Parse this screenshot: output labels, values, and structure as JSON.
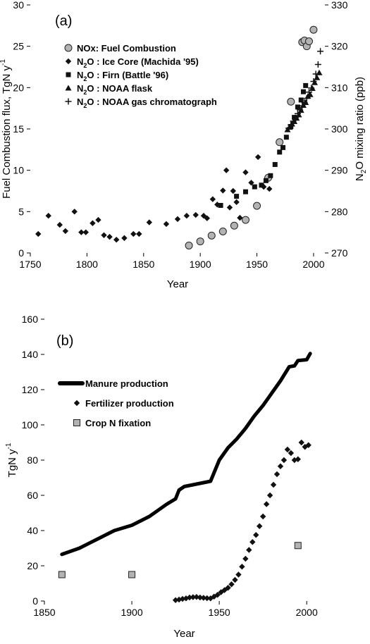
{
  "chart_data": [
    {
      "type": "scatter",
      "panel_label": "(a)",
      "xlabel": "Year",
      "ylabel": "Fuel Combustion flux, TgN y",
      "ylabel_sup": "-1",
      "y2label": "N2O mixing ratio (ppb)",
      "xlim": [
        1750,
        2010
      ],
      "ylim": [
        0,
        30
      ],
      "y2lim": [
        270,
        330
      ],
      "xticks": [
        1750,
        1800,
        1850,
        1900,
        1950,
        2000
      ],
      "yticks": [
        0,
        5,
        10,
        15,
        20,
        25,
        30
      ],
      "y2ticks": [
        270,
        280,
        290,
        300,
        310,
        320,
        330
      ],
      "grid": false,
      "legend_position": "upper-left",
      "series": [
        {
          "name": "NOx: Fuel Combustion",
          "legend_text": "NOx: Fuel Combustion",
          "marker": "circle",
          "axis": "left",
          "x": [
            1890,
            1900,
            1910,
            1920,
            1930,
            1940,
            1950,
            1960,
            1970,
            1980,
            1990,
            1992,
            1994,
            1996,
            2000
          ],
          "y": [
            0.9,
            1.4,
            2.1,
            2.6,
            3.3,
            4.0,
            5.7,
            9.1,
            13.4,
            18.3,
            25.5,
            25.7,
            25.0,
            25.6,
            27.0
          ]
        },
        {
          "name": "N2O: Ice Core (Machida '95)",
          "legend_prefix": "N",
          "legend_sub": "2",
          "legend_suffix": "O : Ice Core (Machida '95)",
          "marker": "diamond",
          "axis": "right",
          "x": [
            1757,
            1766,
            1776,
            1781,
            1789,
            1795,
            1799,
            1805,
            1810,
            1815,
            1820,
            1826,
            1833,
            1841,
            1846,
            1855,
            1870,
            1880,
            1888,
            1896,
            1903,
            1906,
            1911,
            1915,
            1920,
            1923,
            1926,
            1929,
            1932,
            1935,
            1940,
            1945,
            1951,
            1956,
            1961
          ],
          "y": [
            274.6,
            279.0,
            276.8,
            275.3,
            280.0,
            275.0,
            275.0,
            277.2,
            278.0,
            274.3,
            273.9,
            273.2,
            273.6,
            274.6,
            274.6,
            277.4,
            277.0,
            278.2,
            279.0,
            279.2,
            279.0,
            278.4,
            283.0,
            281.7,
            285.1,
            290.0,
            281.0,
            285.0,
            282.3,
            278.5,
            289.5,
            287.0,
            293.2,
            286.0,
            285.5
          ]
        },
        {
          "name": "N2O: Firn (Battle '96)",
          "legend_prefix": "N",
          "legend_sub": "2",
          "legend_suffix": "O : Firn (Battle '96)",
          "marker": "square",
          "axis": "right",
          "x": [
            1918,
            1932,
            1940,
            1948,
            1954,
            1958,
            1962,
            1966,
            1970,
            1973,
            1976,
            1980,
            1983,
            1986,
            1989,
            1991,
            1993
          ],
          "y": [
            281.5,
            283.7,
            284.8,
            286.0,
            286.4,
            287.5,
            288.7,
            291.4,
            294.4,
            295.5,
            298.0,
            300.6,
            302.8,
            305.3,
            307.0,
            309.0,
            310.5
          ]
        },
        {
          "name": "N2O: NOAA flask",
          "legend_prefix": "N",
          "legend_sub": "2",
          "legend_suffix": "O : NOAA flask",
          "marker": "triangle",
          "axis": "right",
          "x": [
            1977,
            1979,
            1981,
            1983,
            1985,
            1987,
            1989,
            1991,
            1993,
            1995,
            1997,
            1999,
            2001,
            2003,
            2005
          ],
          "y": [
            299.8,
            300.4,
            301.2,
            301.8,
            302.6,
            303.4,
            304.5,
            305.7,
            306.4,
            307.9,
            308.3,
            309.8,
            311.2,
            312.4,
            313.6
          ]
        },
        {
          "name": "N2O: NOAA gas chromatograph",
          "legend_prefix": "N",
          "legend_sub": "2",
          "legend_suffix": "O : NOAA gas chromatograph",
          "marker": "plus",
          "axis": "right",
          "x": [
            1978,
            1980,
            1982,
            1984,
            1986,
            1988,
            1990,
            1992,
            1994,
            1996,
            1998,
            2000,
            2002,
            2004,
            2006
          ],
          "y": [
            300.2,
            301.0,
            301.9,
            302.7,
            303.7,
            304.6,
            305.6,
            306.4,
            307.4,
            308.9,
            309.9,
            311.5,
            313.3,
            315.6,
            318.8
          ]
        }
      ]
    },
    {
      "type": "scatter",
      "panel_label": "(b)",
      "xlabel": "Year",
      "ylabel": "TgN  y",
      "ylabel_sup": "-1",
      "xlim": [
        1850,
        2010
      ],
      "ylim": [
        0,
        160
      ],
      "xticks": [
        1850,
        1900,
        1950,
        2000
      ],
      "yticks": [
        0,
        20,
        40,
        60,
        80,
        100,
        120,
        140,
        160
      ],
      "grid": false,
      "legend_position": "upper-left",
      "series": [
        {
          "name": "Manure production",
          "legend_text": "Manure production",
          "marker": "thick-line",
          "x": [
            1860,
            1870,
            1880,
            1890,
            1900,
            1910,
            1920,
            1925,
            1927,
            1930,
            1940,
            1945,
            1950,
            1955,
            1960,
            1965,
            1970,
            1975,
            1980,
            1985,
            1990,
            1993,
            1995,
            2000,
            2002
          ],
          "y": [
            26.5,
            30.0,
            35.0,
            40.0,
            43.0,
            48.0,
            55.0,
            58.0,
            63.0,
            65.0,
            67.0,
            68.0,
            80.0,
            87.0,
            92.0,
            98.0,
            105.0,
            111.0,
            118.0,
            125.0,
            133.0,
            133.5,
            136.5,
            137.0,
            140.5
          ]
        },
        {
          "name": "Fertilizer production",
          "legend_text": "Fertilizer production",
          "marker": "diamond",
          "x": [
            1925,
            1927,
            1929,
            1931,
            1933,
            1935,
            1937,
            1939,
            1941,
            1943,
            1945,
            1947,
            1949,
            1951,
            1953,
            1955,
            1957,
            1959,
            1961,
            1963,
            1965,
            1967,
            1969,
            1971,
            1973,
            1975,
            1977,
            1979,
            1981,
            1983,
            1985,
            1987,
            1989,
            1991,
            1993,
            1995,
            1997,
            1999,
            2001
          ],
          "y": [
            0.5,
            0.8,
            1.2,
            1.5,
            2.0,
            2.2,
            2.3,
            2.0,
            1.8,
            1.6,
            1.5,
            2.5,
            3.5,
            5.0,
            6.2,
            7.5,
            9.5,
            12.0,
            15.0,
            19.5,
            24.0,
            29.0,
            33.5,
            37.5,
            42.5,
            48.0,
            55.0,
            60.0,
            66.0,
            72.0,
            76.5,
            80.0,
            86.0,
            84.0,
            80.0,
            80.5,
            90.0,
            87.5,
            88.5
          ]
        },
        {
          "name": "Crop N fixation",
          "legend_text": "Crop N fixation",
          "marker": "square",
          "x": [
            1860,
            1900,
            1995
          ],
          "y": [
            15.0,
            15.0,
            31.5
          ]
        }
      ]
    }
  ]
}
